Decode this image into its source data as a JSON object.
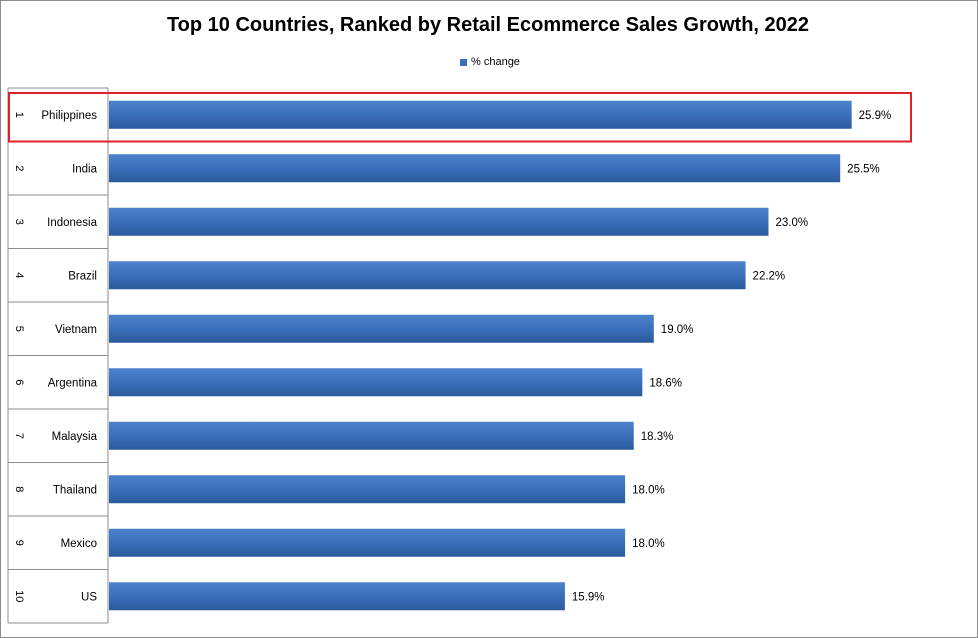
{
  "chart_data": {
    "type": "bar",
    "orientation": "horizontal",
    "title": "Top 10 Countries, Ranked by Retail Ecommerce Sales Growth, 2022",
    "legend": {
      "label": "% change",
      "placement": "top-center"
    },
    "series": [
      {
        "name": "% change",
        "color": "#3a6fb9",
        "values": [
          25.9,
          25.5,
          23.0,
          22.2,
          19.0,
          18.6,
          18.3,
          18.0,
          18.0,
          15.9
        ]
      }
    ],
    "ranks": [
      "1",
      "2",
      "3",
      "4",
      "5",
      "6",
      "7",
      "8",
      "9",
      "10"
    ],
    "categories": [
      "Philippines",
      "India",
      "Indonesia",
      "Brazil",
      "Vietnam",
      "Argentina",
      "Malaysia",
      "Thailand",
      "Mexico",
      "US"
    ],
    "value_labels": [
      "25.9%",
      "25.5%",
      "23.0%",
      "22.2%",
      "19.0%",
      "18.6%",
      "18.3%",
      "18.0%",
      "18.0%",
      "15.9%"
    ],
    "xlim": [
      0,
      27.9
    ],
    "grid": false,
    "highlight_index": 0,
    "highlight_color": "#e0202a"
  }
}
